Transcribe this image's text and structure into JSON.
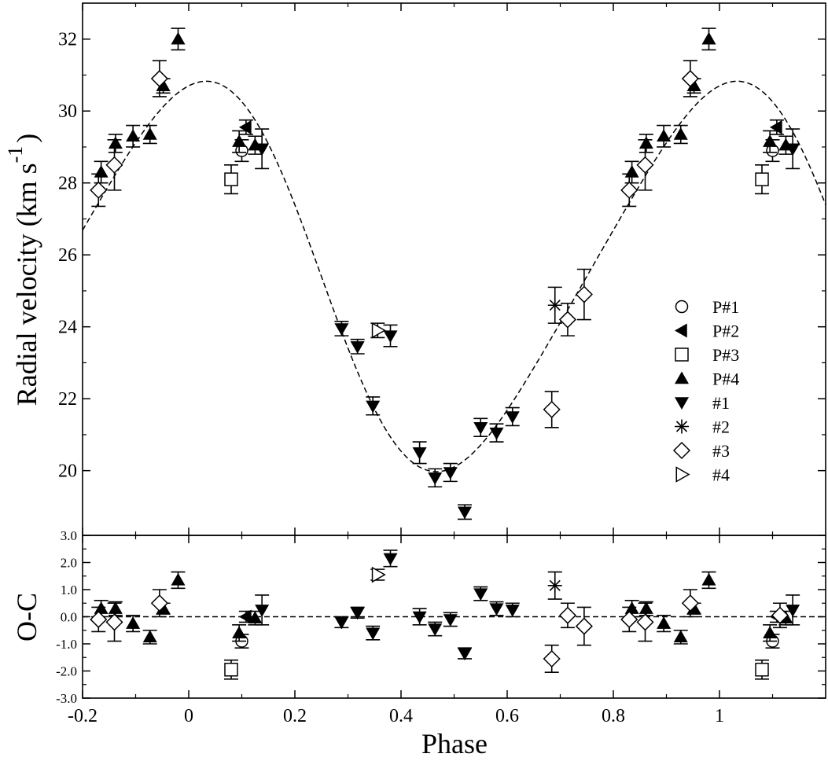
{
  "chart_data": [
    {
      "type": "scatter",
      "panel": "radial-velocity",
      "ylabel": "Radial velocity (km s",
      "ylabel_sup": "-1",
      "ylabel_close": ")",
      "xlim": [
        -0.2,
        1.2
      ],
      "ylim": [
        18.2,
        33.0
      ],
      "yticks": [
        "20",
        "22",
        "24",
        "26",
        "28",
        "30",
        "32"
      ],
      "legend_position": "right",
      "model_curve": {
        "style": "dashed",
        "mean": 25.4,
        "amplitude": 5.3,
        "max_phase": 0.0,
        "harmonic_amplitude": 0.6
      },
      "series": [
        {
          "name": "P#1",
          "marker": "circle-open",
          "points": [
            [
              0.1,
              28.9,
              0.3
            ],
            [
              1.1,
              28.9,
              0.3
            ]
          ]
        },
        {
          "name": "P#2",
          "marker": "triangle-left-filled",
          "points": [
            [
              0.108,
              29.55,
              0.2
            ],
            [
              1.108,
              29.55,
              0.2
            ]
          ]
        },
        {
          "name": "P#3",
          "marker": "square-open",
          "points": [
            [
              0.08,
              28.1,
              0.4
            ],
            [
              1.08,
              28.1,
              0.4
            ]
          ]
        },
        {
          "name": "P#4",
          "marker": "triangle-up-filled",
          "points": [
            [
              -0.165,
              28.3,
              0.3
            ],
            [
              -0.138,
              29.1,
              0.25
            ],
            [
              -0.105,
              29.3,
              0.3
            ],
            [
              -0.073,
              29.35,
              0.25
            ],
            [
              -0.048,
              30.7,
              0.2
            ],
            [
              -0.02,
              32.0,
              0.3
            ],
            [
              0.095,
              29.15,
              0.3
            ],
            [
              0.125,
              29.05,
              0.25
            ],
            [
              0.835,
              28.3,
              0.3
            ],
            [
              0.862,
              29.1,
              0.25
            ],
            [
              0.895,
              29.3,
              0.3
            ],
            [
              0.927,
              29.35,
              0.25
            ],
            [
              0.952,
              30.7,
              0.2
            ],
            [
              0.98,
              32.0,
              0.3
            ],
            [
              1.095,
              29.15,
              0.3
            ],
            [
              1.125,
              29.05,
              0.25
            ]
          ]
        },
        {
          "name": "#1",
          "marker": "triangle-down-filled",
          "points": [
            [
              0.138,
              28.95,
              0.55
            ],
            [
              0.288,
              23.95,
              0.2
            ],
            [
              0.318,
              23.45,
              0.2
            ],
            [
              0.347,
              21.8,
              0.25
            ],
            [
              0.38,
              23.75,
              0.3
            ],
            [
              0.435,
              20.5,
              0.3
            ],
            [
              0.464,
              19.8,
              0.25
            ],
            [
              0.493,
              19.95,
              0.25
            ],
            [
              0.52,
              18.85,
              0.2
            ],
            [
              0.55,
              21.2,
              0.25
            ],
            [
              0.58,
              21.05,
              0.25
            ],
            [
              0.61,
              21.5,
              0.25
            ],
            [
              1.138,
              28.95,
              0.55
            ]
          ]
        },
        {
          "name": "#2",
          "marker": "asterisk",
          "points": [
            [
              0.69,
              24.6,
              0.5
            ]
          ]
        },
        {
          "name": "#3",
          "marker": "diamond-open",
          "points": [
            [
              -0.17,
              27.8,
              0.45
            ],
            [
              -0.14,
              28.5,
              0.7
            ],
            [
              -0.055,
              30.9,
              0.5
            ],
            [
              0.684,
              21.7,
              0.5
            ],
            [
              0.714,
              24.2,
              0.45
            ],
            [
              0.745,
              24.9,
              0.7
            ],
            [
              0.83,
              27.8,
              0.45
            ],
            [
              0.86,
              28.5,
              0.7
            ],
            [
              0.945,
              30.9,
              0.5
            ]
          ]
        },
        {
          "name": "#4",
          "marker": "triangle-right-open",
          "points": [
            [
              0.356,
              23.9,
              0.2
            ]
          ]
        }
      ]
    },
    {
      "type": "scatter",
      "panel": "residuals",
      "ylabel": "O-C",
      "xlabel": "Phase",
      "xlim": [
        -0.2,
        1.2
      ],
      "ylim": [
        -3.0,
        3.0
      ],
      "xticks": [
        "-0.2",
        "0",
        "0.2",
        "0.4",
        "0.6",
        "0.8",
        "1"
      ],
      "yticks": [
        "-3.0",
        "-2.0",
        "-1.0",
        "0.0",
        "1.0",
        "2.0",
        "3.0"
      ],
      "reference_line": {
        "y": 0.0,
        "style": "dashed"
      },
      "series": [
        {
          "name": "P#1",
          "marker": "circle-open",
          "points": [
            [
              0.1,
              -0.9,
              0.25
            ],
            [
              1.1,
              -0.9,
              0.25
            ]
          ]
        },
        {
          "name": "P#2",
          "marker": "triangle-left-filled",
          "points": [
            [
              0.108,
              0.0,
              0.2
            ],
            [
              1.108,
              0.0,
              0.2
            ]
          ]
        },
        {
          "name": "P#3",
          "marker": "square-open",
          "points": [
            [
              0.08,
              -1.95,
              0.35
            ],
            [
              1.08,
              -1.95,
              0.35
            ]
          ]
        },
        {
          "name": "P#4",
          "marker": "triangle-up-filled",
          "points": [
            [
              -0.165,
              0.3,
              0.3
            ],
            [
              -0.138,
              0.3,
              0.25
            ],
            [
              -0.105,
              -0.25,
              0.3
            ],
            [
              -0.073,
              -0.75,
              0.25
            ],
            [
              -0.048,
              0.3,
              0.2
            ],
            [
              -0.02,
              1.35,
              0.3
            ],
            [
              0.095,
              -0.6,
              0.3
            ],
            [
              0.125,
              -0.05,
              0.25
            ],
            [
              0.835,
              0.3,
              0.3
            ],
            [
              0.862,
              0.3,
              0.25
            ],
            [
              0.895,
              -0.25,
              0.3
            ],
            [
              0.927,
              -0.75,
              0.25
            ],
            [
              0.952,
              0.3,
              0.2
            ],
            [
              0.98,
              1.35,
              0.3
            ],
            [
              1.095,
              -0.6,
              0.3
            ],
            [
              1.125,
              -0.05,
              0.25
            ]
          ]
        },
        {
          "name": "#1",
          "marker": "triangle-down-filled",
          "points": [
            [
              0.138,
              0.25,
              0.55
            ],
            [
              0.288,
              -0.2,
              0.2
            ],
            [
              0.318,
              0.15,
              0.2
            ],
            [
              0.347,
              -0.6,
              0.25
            ],
            [
              0.38,
              2.15,
              0.3
            ],
            [
              0.435,
              0.0,
              0.3
            ],
            [
              0.464,
              -0.45,
              0.25
            ],
            [
              0.493,
              -0.1,
              0.25
            ],
            [
              0.52,
              -1.35,
              0.2
            ],
            [
              0.55,
              0.85,
              0.25
            ],
            [
              0.58,
              0.3,
              0.25
            ],
            [
              0.61,
              0.25,
              0.25
            ],
            [
              1.138,
              0.25,
              0.55
            ]
          ]
        },
        {
          "name": "#2",
          "marker": "asterisk",
          "points": [
            [
              0.69,
              1.15,
              0.5
            ]
          ]
        },
        {
          "name": "#3",
          "marker": "diamond-open",
          "points": [
            [
              -0.17,
              -0.1,
              0.45
            ],
            [
              -0.14,
              -0.2,
              0.7
            ],
            [
              -0.055,
              0.5,
              0.5
            ],
            [
              0.684,
              -1.55,
              0.5
            ],
            [
              0.714,
              0.05,
              0.45
            ],
            [
              0.745,
              -0.35,
              0.7
            ],
            [
              0.83,
              -0.1,
              0.45
            ],
            [
              0.86,
              -0.2,
              0.7
            ],
            [
              0.945,
              0.5,
              0.5
            ],
            [
              1.114,
              0.05,
              0.45
            ]
          ]
        },
        {
          "name": "#4",
          "marker": "triangle-right-open",
          "points": [
            [
              0.356,
              1.55,
              0.2
            ]
          ]
        }
      ]
    }
  ]
}
